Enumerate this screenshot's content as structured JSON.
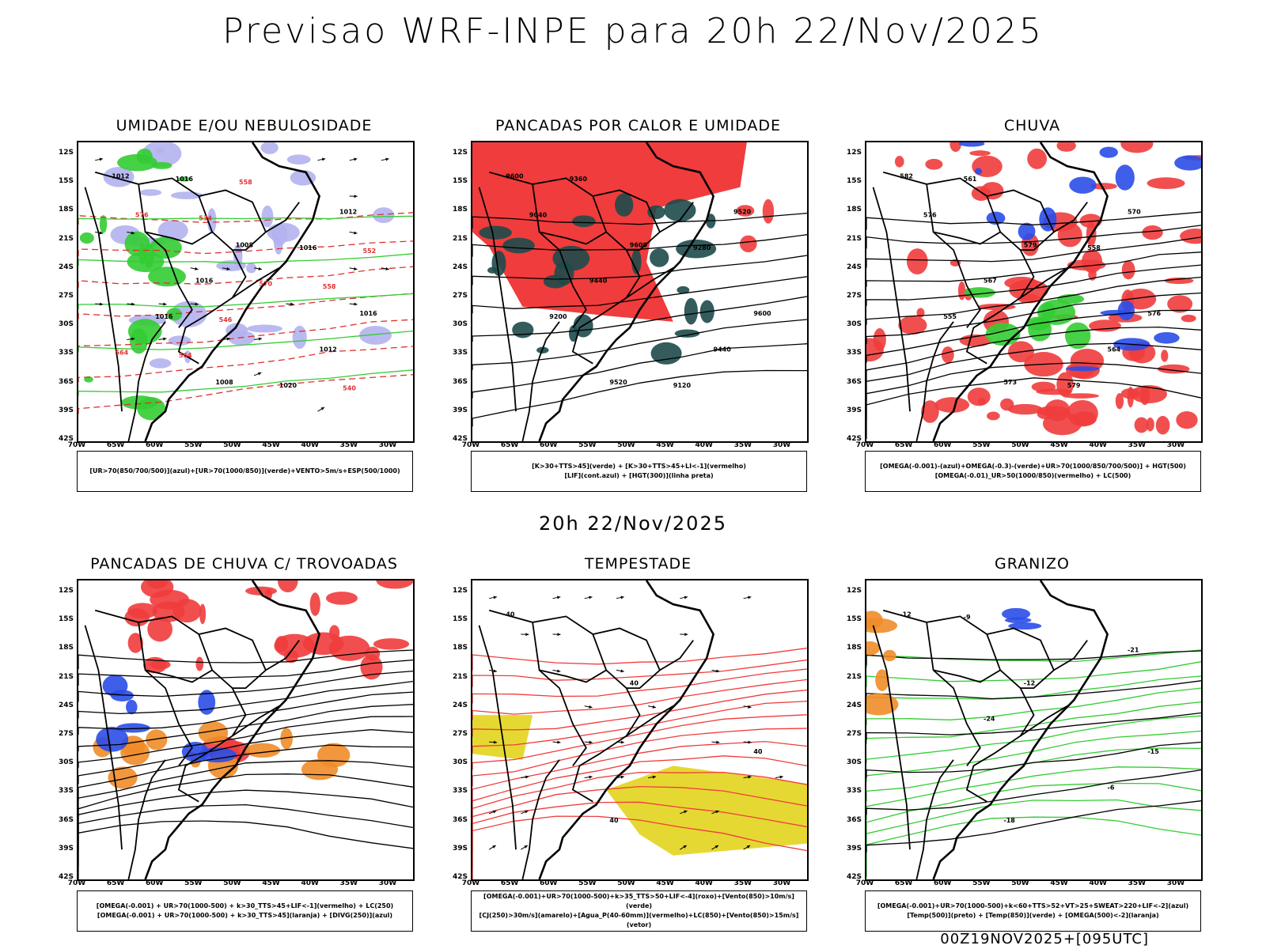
{
  "title": "Previsao WRF-INPE  para 20h 22/Nov/2025",
  "subtitle": "20h 22/Nov/2025",
  "footer": "00Z19NOV2025+[095UTC]",
  "lat_labels": [
    "12S",
    "15S",
    "18S",
    "21S",
    "24S",
    "27S",
    "30S",
    "33S",
    "36S",
    "39S",
    "42S"
  ],
  "lon_labels": [
    "70W",
    "65W",
    "60W",
    "55W",
    "50W",
    "45W",
    "40W",
    "35W",
    "30W"
  ],
  "panels": [
    {
      "title": "UMIDADE E/OU NEBULOSIDADE",
      "legend": [
        "[UR>70(850/700/500)](azul)+[UR>70(1000/850)](verde)+VENTO>5m/s+ESP(500/1000)"
      ],
      "contour_labels": [
        "1012",
        "1008",
        "1016",
        "1008",
        "1012",
        "1016",
        "1012",
        "1016",
        "1016",
        "1016",
        "1020",
        "576",
        "570",
        "564",
        "558",
        "552",
        "546",
        "540",
        "534",
        "558",
        "564"
      ],
      "fills": [
        "#b3b3f0",
        "#33cc33"
      ]
    },
    {
      "title": "PANCADAS POR CALOR E UMIDADE",
      "legend": [
        "[K>30+TTS>45](verde) + [K>30+TTS>45+LI<-1](vermelho)",
        "[LIF](cont.azul) + [HGT(300)](linha preta)"
      ],
      "contour_labels": [
        "9600",
        "9600",
        "9600",
        "9520",
        "9520",
        "9440",
        "9440",
        "9360",
        "9280",
        "9200",
        "9120",
        "9040"
      ],
      "fills": [
        "#f03c3c",
        "#1e4a4a"
      ]
    },
    {
      "title": "CHUVA",
      "legend": [
        "[OMEGA(-0.001)-(azul)+OMEGA(-0.3)-(verde)+UR>70(1000/850/700/500)] + HGT(500)",
        "[OMEGA(-0.01)_UR>50(1000/850)(vermelho) + LC(500)"
      ],
      "contour_labels": [
        "582",
        "579",
        "576",
        "573",
        "570",
        "567",
        "564",
        "561",
        "558",
        "555",
        "579",
        "576"
      ],
      "fills": [
        "#f03c3c",
        "#2a4ce8",
        "#33cc33"
      ]
    },
    {
      "title": "PANCADAS DE CHUVA C/ TROVOADAS",
      "legend": [
        "[OMEGA(-0.001) + UR>70(1000-500) + k>30_TTS>45+LIF<-1](vermelho) + LC(250)",
        "[OMEGA(-0.001) + UR>70(1000-500) + k>30_TTS>45](laranja) + [DIVG(250)](azul)"
      ],
      "contour_labels": [],
      "fills": [
        "#f03c3c",
        "#f08c28",
        "#2a4ce8"
      ]
    },
    {
      "title": "TEMPESTADE",
      "legend": [
        "[OMEGA(-0.001)+UR>70(1000-500)+k>35_TTS>50+LIF<-4](roxo)+[Vento(850)>10m/s](verde)",
        "[CJ(250)>30m/s](amarelo)+[Agua_P(40-60mm)](vermelho)+LC(850)+[Vento(850)>15m/s](vetor)"
      ],
      "contour_labels": [
        "40",
        "40",
        "40",
        "40"
      ],
      "fills": [
        "#e6d832",
        "#f03c3c"
      ]
    },
    {
      "title": "GRANIZO",
      "legend": [
        "[OMEGA(-0.001)+UR>70(1000-500)+k<60+TTS>52+VT>25+SWEAT>220+LIF<-2](azul)",
        "[Temp(500)](preto) + [Temp(850)](verde) + [OMEGA(500)<-2](laranja)"
      ],
      "contour_labels": [
        "-12",
        "-12",
        "-15",
        "-18",
        "-21",
        "-24",
        "-6",
        "-9"
      ],
      "fills": [
        "#33cc33",
        "#f08c28",
        "#2a4ce8"
      ]
    }
  ]
}
